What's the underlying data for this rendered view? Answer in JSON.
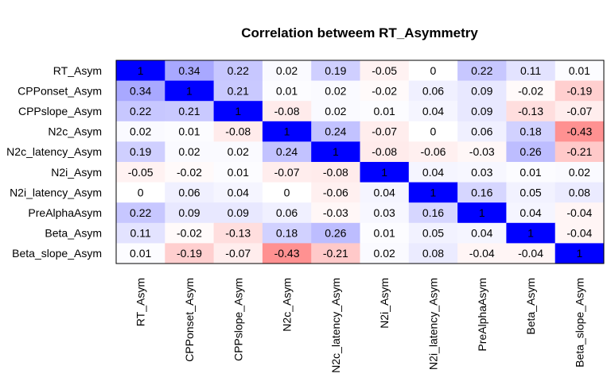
{
  "chart_data": {
    "type": "heatmap",
    "title": "Correlation betweem RT_Asymmetry",
    "row_labels": [
      "RT_Asym",
      "CPPonset_Asym",
      "CPPslope_Asym",
      "N2c_Asym",
      "N2c_latency_Asym",
      "N2i_Asym",
      "N2i_latency_Asym",
      "PreAlphaAsym",
      "Beta_Asym",
      "Beta_slope_Asym"
    ],
    "col_labels": [
      "RT_Asym",
      "CPPonset_Asym",
      "CPPslope_Asym",
      "N2c_Asym",
      "N2c_latency_Asym",
      "N2i_Asym",
      "N2i_latency_Asym",
      "PreAlphaAsym",
      "Beta_Asym",
      "Beta_slope_Asym"
    ],
    "values": [
      [
        1,
        0.34,
        0.22,
        0.02,
        0.19,
        -0.05,
        0,
        0.22,
        0.11,
        0.01
      ],
      [
        0.34,
        1,
        0.21,
        0.01,
        0.02,
        -0.02,
        0.06,
        0.09,
        -0.02,
        -0.19
      ],
      [
        0.22,
        0.21,
        1,
        -0.08,
        0.02,
        0.01,
        0.04,
        0.09,
        -0.13,
        -0.07
      ],
      [
        0.02,
        0.01,
        -0.08,
        1,
        0.24,
        -0.07,
        0,
        0.06,
        0.18,
        -0.43
      ],
      [
        0.19,
        0.02,
        0.02,
        0.24,
        1,
        -0.08,
        -0.06,
        -0.03,
        0.26,
        -0.21
      ],
      [
        -0.05,
        -0.02,
        0.01,
        -0.07,
        -0.08,
        1,
        0.04,
        0.03,
        0.01,
        0.02
      ],
      [
        0,
        0.06,
        0.04,
        0,
        -0.06,
        0.04,
        1,
        0.16,
        0.05,
        0.08
      ],
      [
        0.22,
        0.09,
        0.09,
        0.06,
        -0.03,
        0.03,
        0.16,
        1,
        0.04,
        -0.04
      ],
      [
        0.11,
        -0.02,
        -0.13,
        0.18,
        0.26,
        0.01,
        0.05,
        0.04,
        1,
        -0.04
      ],
      [
        0.01,
        -0.19,
        -0.07,
        -0.43,
        -0.21,
        0.02,
        0.08,
        -0.04,
        -0.04,
        1
      ]
    ],
    "value_range": [
      -1,
      1
    ],
    "colors": {
      "negative": "#ff0000",
      "neutral": "#ffffff",
      "positive": "#0000ff"
    },
    "legend": "none",
    "grid": false
  }
}
